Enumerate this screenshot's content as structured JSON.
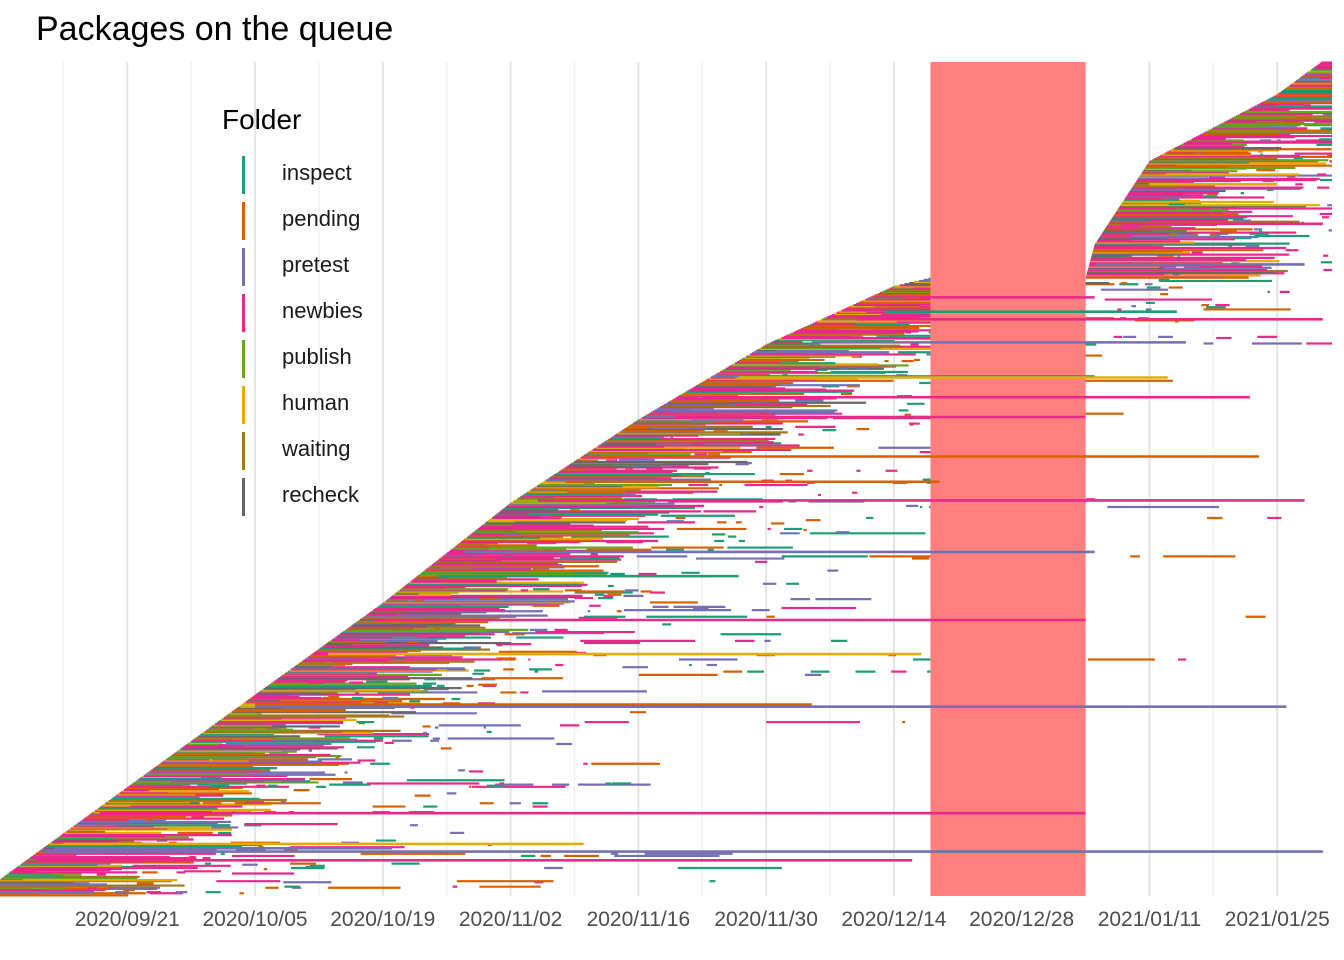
{
  "chart_data": {
    "type": "timeline",
    "title": "Packages on the queue",
    "xlabel": "",
    "ylabel": "",
    "x_range": [
      "2020-09-11",
      "2021-01-30"
    ],
    "x_ticks": [
      "2020/09/21",
      "2020/10/05",
      "2020/10/19",
      "2020/11/02",
      "2020/11/16",
      "2020/11/30",
      "2020/12/14",
      "2020/12/28",
      "2021/01/11",
      "2021/01/25"
    ],
    "grid": true,
    "highlight_period": {
      "start": "2020-12-18",
      "end": "2021-01-04",
      "color": "#ff7f7f"
    },
    "legend": {
      "title": "Folder",
      "position": "top-left",
      "entries": [
        {
          "name": "inspect",
          "color": "#1b9e77"
        },
        {
          "name": "pending",
          "color": "#d95f02"
        },
        {
          "name": "pretest",
          "color": "#7570b3"
        },
        {
          "name": "newbies",
          "color": "#e7298a"
        },
        {
          "name": "publish",
          "color": "#66a61e"
        },
        {
          "name": "human",
          "color": "#e6ab02"
        },
        {
          "name": "waiting",
          "color": "#a6761d"
        },
        {
          "name": "recheck",
          "color": "#666666"
        }
      ]
    },
    "series": [
      {
        "folder": "pretest",
        "start": "2020-09-12",
        "end": "2021-01-30"
      },
      {
        "folder": "inspect",
        "start": "2020-11-27",
        "end": "2021-01-05"
      },
      {
        "folder": "newbies",
        "start": "2020-09-11",
        "end": "2020-12-16"
      },
      {
        "folder": "pretest",
        "start": "2020-09-13",
        "end": "2020-10-20"
      },
      {
        "folder": "human",
        "start": "2020-09-14",
        "end": "2020-11-10"
      },
      {
        "folder": "newbies",
        "start": "2020-09-18",
        "end": "2021-01-04"
      },
      {
        "folder": "pending",
        "start": "2020-10-05",
        "end": "2020-12-05"
      },
      {
        "folder": "human",
        "start": "2020-10-13",
        "end": "2020-12-17"
      },
      {
        "folder": "pretest",
        "start": "2020-10-05",
        "end": "2021-01-26"
      },
      {
        "folder": "inspect",
        "start": "2020-10-25",
        "end": "2020-11-27"
      },
      {
        "folder": "newbies",
        "start": "2020-10-18",
        "end": "2021-01-04"
      },
      {
        "folder": "pending",
        "start": "2020-11-08",
        "end": "2020-12-19"
      },
      {
        "folder": "pretest",
        "start": "2020-10-28",
        "end": "2021-01-05"
      },
      {
        "folder": "newbies",
        "start": "2020-11-05",
        "end": "2021-01-28"
      },
      {
        "folder": "newbies",
        "start": "2020-11-20",
        "end": "2021-01-04"
      },
      {
        "folder": "pending",
        "start": "2020-11-12",
        "end": "2021-01-23"
      },
      {
        "folder": "newbies",
        "start": "2020-11-23",
        "end": "2021-01-22"
      },
      {
        "folder": "human",
        "start": "2020-11-27",
        "end": "2021-01-13"
      },
      {
        "folder": "pretest",
        "start": "2020-12-05",
        "end": "2021-01-15"
      },
      {
        "folder": "inspect",
        "start": "2020-12-13",
        "end": "2021-01-14"
      },
      {
        "folder": "newbies",
        "start": "2020-12-10",
        "end": "2021-01-30"
      },
      {
        "folder": "newbies",
        "start": "2020-12-17",
        "end": "2021-01-05"
      },
      {
        "folder": "pretest",
        "start": "2021-01-05",
        "end": "2021-01-28"
      },
      {
        "folder": "newbies",
        "start": "2021-01-08",
        "end": "2021-01-30"
      },
      {
        "folder": "human",
        "start": "2021-01-11",
        "end": "2021-01-25"
      }
    ],
    "queue_size_over_time": [
      {
        "date": "2020-09-11",
        "value": 5
      },
      {
        "date": "2020-10-05",
        "value": 24
      },
      {
        "date": "2020-10-19",
        "value": 35
      },
      {
        "date": "2020-11-02",
        "value": 47
      },
      {
        "date": "2020-11-16",
        "value": 57
      },
      {
        "date": "2020-11-30",
        "value": 66
      },
      {
        "date": "2020-12-14",
        "value": 73
      },
      {
        "date": "2020-12-18",
        "value": 74
      },
      {
        "date": "2021-01-04",
        "value": 74
      },
      {
        "date": "2021-01-05",
        "value": 78
      },
      {
        "date": "2021-01-11",
        "value": 88
      },
      {
        "date": "2021-01-25",
        "value": 96
      },
      {
        "date": "2021-01-30",
        "value": 100
      }
    ]
  }
}
